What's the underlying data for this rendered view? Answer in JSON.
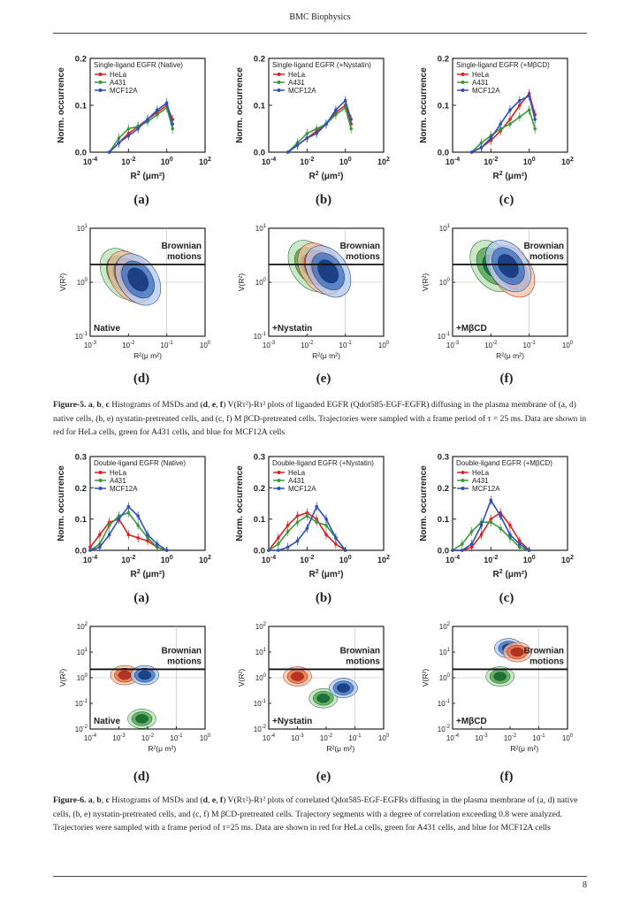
{
  "page": {
    "header": "BMC Biophysics",
    "page_number": "8"
  },
  "fig5": {
    "histograms": [
      {
        "title": "Single-ligand EGFR (Native)",
        "label": "(a)"
      },
      {
        "title": "Single-ligand EGFR (+Nystatin)",
        "label": "(b)"
      },
      {
        "title": "Single-ligand EGFR (+MβCD)",
        "label": "(c)"
      }
    ],
    "contours": [
      {
        "condition": "Native",
        "label": "(d)"
      },
      {
        "condition": "+Nystatin",
        "label": "(e)"
      },
      {
        "condition": "+MβCD",
        "label": "(f)"
      }
    ],
    "caption": {
      "fig_label": "Figure-5.",
      "bold1": "a",
      "sep1": ",",
      "bold2": "b",
      "sep2": ",",
      "bold3": "c",
      "part1": "Histograms of MSDs and (",
      "bold_def": "d",
      "part1b": ",",
      "bold_e": "e",
      "part1c": ",",
      "bold_f": "f",
      "part2": ") V(Rτ²)-Rτ² plots of liganded EGFR (Qdot585-EGF-EGFR) diffusing in the plasma membrane of (a, d) native cells, (b, e) nystatin-pretreated cells, and (c, f) M βCD-pretreated cells. Trajectories were sampled with a frame period of τ = 25 ms. Data are shown in red for HeLa cells, green for A431 cells, and blue for MCF12A cells"
    }
  },
  "fig6": {
    "histograms": [
      {
        "title": "Double-ligand EGFR (Native)",
        "label": "(a)"
      },
      {
        "title": "Double-ligand EGFR (+Nystatin)",
        "label": "(b)"
      },
      {
        "title": "Double-ligand EGFR (+MβCD)",
        "label": "(c)"
      }
    ],
    "contours": [
      {
        "condition": "Native",
        "label": "(d)"
      },
      {
        "condition": "+Nystatin",
        "label": "(e)"
      },
      {
        "condition": "+MβCD",
        "label": "(f)"
      }
    ],
    "caption": {
      "fig_label": "Figure-6.",
      "bold1": "a",
      "sep1": ",",
      "bold2": "b",
      "sep2": ",",
      "bold3": "c",
      "part1": "Histograms of MSDs and (",
      "bold_def": "d",
      "part1b": ",",
      "bold_e": "e",
      "part1c": ",",
      "bold_f": "f",
      "part2": ") V(Rτ²)-Rτ² plots of correlated Qdot585-EGF-EGFRs diffusing in the plasma membrane of (a, d) native cells, (b, e) nystatin-pretreated cells, and (c, f) M βCD-pretreated cells. Trajectory segments with a degree of correlation exceeding 0.8 were analyzed. Trajectories were sampled with a frame period of τ=25 ms. Data are shown in red for HeLa cells, green for A431 cells, and blue for MCF12A cells"
    }
  },
  "common": {
    "ylabel_hist": "Norm. occurrence",
    "xlabel_hist_base": "R",
    "xlabel_hist_unit": "(μm²)",
    "legend": [
      "HeLa",
      "A431",
      "MCF12A"
    ],
    "brownian_line1": "Brownian",
    "brownian_line2": "motions",
    "ylabel_contour": "V(R²)",
    "xlabel_contour": "R²(μ m²)",
    "colors": {
      "HeLa": "#e02020",
      "A431": "#3a9a3a",
      "MCF12A": "#2a50c0"
    }
  },
  "chart_data": [
    {
      "type": "line",
      "title": "Single-ligand EGFR (Native)",
      "ylabel": "Norm. occurrence",
      "xlabel": "R² (μm²)",
      "xscale": "log",
      "xlim": [
        0.0001,
        100
      ],
      "ylim": [
        0,
        0.2
      ],
      "yticks": [
        "0.0",
        "0.1",
        "0.2"
      ],
      "log_x": [
        -3,
        -2.5,
        -2,
        -1.5,
        -1,
        -0.5,
        0,
        0.3
      ],
      "series": [
        {
          "name": "HeLa",
          "values": [
            0.0,
            0.02,
            0.04,
            0.055,
            0.07,
            0.085,
            0.1,
            0.07
          ]
        },
        {
          "name": "A431",
          "values": [
            0.0,
            0.03,
            0.05,
            0.055,
            0.065,
            0.08,
            0.095,
            0.05
          ]
        },
        {
          "name": "MCF12A",
          "values": [
            0.0,
            0.02,
            0.035,
            0.05,
            0.07,
            0.09,
            0.105,
            0.06
          ]
        }
      ]
    },
    {
      "type": "line",
      "title": "Single-ligand EGFR (+Nystatin)",
      "ylabel": "Norm. occurrence",
      "xlabel": "R² (μm²)",
      "xscale": "log",
      "xlim": [
        0.0001,
        100
      ],
      "ylim": [
        0,
        0.2
      ],
      "yticks": [
        "0.0",
        "0.1",
        "0.2"
      ],
      "log_x": [
        -3,
        -2.5,
        -2,
        -1.5,
        -1,
        -0.5,
        0,
        0.3
      ],
      "series": [
        {
          "name": "HeLa",
          "values": [
            0.0,
            0.015,
            0.03,
            0.045,
            0.06,
            0.085,
            0.1,
            0.06
          ]
        },
        {
          "name": "A431",
          "values": [
            0.0,
            0.02,
            0.04,
            0.05,
            0.06,
            0.08,
            0.095,
            0.05
          ]
        },
        {
          "name": "MCF12A",
          "values": [
            0.0,
            0.015,
            0.03,
            0.04,
            0.06,
            0.09,
            0.11,
            0.07
          ]
        }
      ]
    },
    {
      "type": "line",
      "title": "Single-ligand EGFR (+MβCD)",
      "ylabel": "Norm. occurrence",
      "xlabel": "R² (μm²)",
      "xscale": "log",
      "xlim": [
        0.0001,
        100
      ],
      "ylim": [
        0,
        0.2
      ],
      "yticks": [
        "0.0",
        "0.1",
        "0.2"
      ],
      "log_x": [
        -3,
        -2.5,
        -2,
        -1.5,
        -1,
        -0.5,
        0,
        0.3
      ],
      "series": [
        {
          "name": "HeLa",
          "values": [
            0.0,
            0.01,
            0.025,
            0.045,
            0.07,
            0.1,
            0.125,
            0.08
          ]
        },
        {
          "name": "A431",
          "values": [
            0.0,
            0.02,
            0.035,
            0.05,
            0.06,
            0.075,
            0.09,
            0.05
          ]
        },
        {
          "name": "MCF12A",
          "values": [
            0.0,
            0.01,
            0.03,
            0.06,
            0.09,
            0.11,
            0.12,
            0.07
          ]
        }
      ]
    },
    {
      "type": "line",
      "title": "Double-ligand EGFR (Native)",
      "ylabel": "Norm. occurrence",
      "xlabel": "R² (μm²)",
      "xscale": "log",
      "xlim": [
        0.0001,
        100
      ],
      "ylim": [
        0,
        0.3
      ],
      "yticks": [
        "0.0",
        "0.1",
        "0.2",
        "0.3"
      ],
      "log_x": [
        -4,
        -3.5,
        -3,
        -2.5,
        -2,
        -1.5,
        -1,
        -0.5,
        0
      ],
      "series": [
        {
          "name": "HeLa",
          "values": [
            0.01,
            0.05,
            0.09,
            0.1,
            0.05,
            0.04,
            0.03,
            0.01,
            0.0
          ]
        },
        {
          "name": "A431",
          "values": [
            0.0,
            0.02,
            0.08,
            0.11,
            0.12,
            0.08,
            0.04,
            0.01,
            0.0
          ]
        },
        {
          "name": "MCF12A",
          "values": [
            0.0,
            0.01,
            0.05,
            0.1,
            0.14,
            0.11,
            0.05,
            0.02,
            0.0
          ]
        }
      ]
    },
    {
      "type": "line",
      "title": "Double-ligand EGFR (+Nystatin)",
      "ylabel": "Norm. occurrence",
      "xlabel": "R² (μm²)",
      "xscale": "log",
      "xlim": [
        0.0001,
        100
      ],
      "ylim": [
        0,
        0.3
      ],
      "yticks": [
        "0.0",
        "0.1",
        "0.2",
        "0.3"
      ],
      "log_x": [
        -4,
        -3.5,
        -3,
        -2.5,
        -2,
        -1.5,
        -1,
        -0.5,
        0
      ],
      "series": [
        {
          "name": "HeLa",
          "values": [
            0.0,
            0.04,
            0.08,
            0.11,
            0.12,
            0.1,
            0.05,
            0.02,
            0.0
          ]
        },
        {
          "name": "A431",
          "values": [
            0.0,
            0.02,
            0.06,
            0.09,
            0.11,
            0.09,
            0.08,
            0.04,
            0.0
          ]
        },
        {
          "name": "MCF12A",
          "values": [
            0.0,
            0.0,
            0.01,
            0.03,
            0.07,
            0.14,
            0.1,
            0.04,
            0.0
          ]
        }
      ]
    },
    {
      "type": "line",
      "title": "Double-ligand EGFR (+MβCD)",
      "ylabel": "Norm. occurrence",
      "xlabel": "R² (μm²)",
      "xscale": "log",
      "xlim": [
        0.0001,
        100
      ],
      "ylim": [
        0,
        0.3
      ],
      "yticks": [
        "0.0",
        "0.1",
        "0.2",
        "0.3"
      ],
      "log_x": [
        -4,
        -3.5,
        -3,
        -2.5,
        -2,
        -1.5,
        -1,
        -0.5,
        0
      ],
      "series": [
        {
          "name": "HeLa",
          "values": [
            0.0,
            0.0,
            0.01,
            0.05,
            0.1,
            0.12,
            0.08,
            0.03,
            0.0
          ]
        },
        {
          "name": "A431",
          "values": [
            0.0,
            0.02,
            0.06,
            0.09,
            0.09,
            0.07,
            0.04,
            0.01,
            0.0
          ]
        },
        {
          "name": "MCF12A",
          "values": [
            0.0,
            0.0,
            0.02,
            0.08,
            0.16,
            0.11,
            0.05,
            0.02,
            0.0
          ]
        }
      ]
    }
  ]
}
